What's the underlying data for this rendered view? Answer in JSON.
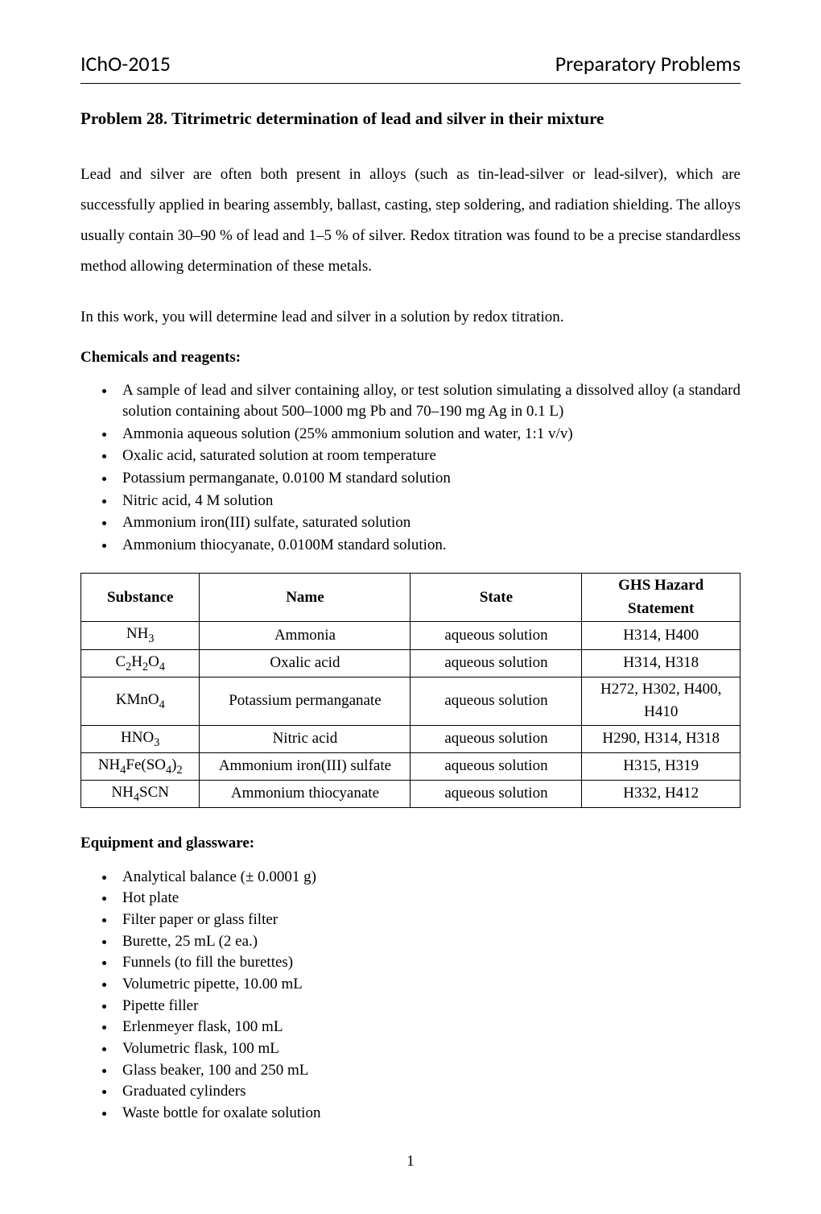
{
  "header": {
    "left": "IChO-2015",
    "right": "Preparatory Problems"
  },
  "title": "Problem 28. Titrimetric determination of lead and silver in their mixture",
  "intro1": "Lead and silver are often both present in alloys (such as tin-lead-silver or lead-silver), which are successfully applied in bearing assembly, ballast, casting, step soldering, and radiation shielding. The alloys usually contain 30–90 % of lead and 1–5 % of silver. Redox titration was found to be a precise standardless method allowing determination of these metals.",
  "intro2": "In this work, you will determine lead and silver in a solution by redox titration.",
  "chemicals_heading": "Chemicals and reagents:",
  "chemicals": [
    "A sample of lead and silver containing alloy, or test solution simulating a dissolved alloy (a standard solution containing about 500–1000 mg Pb and 70–190 mg Ag in 0.1 L)",
    "Ammonia aqueous solution (25% ammonium solution and water, 1:1 v/v)",
    "Oxalic acid, saturated solution at room temperature",
    "Potassium permanganate, 0.0100 M standard solution",
    "Nitric acid, 4 M solution",
    "Ammonium iron(III) sulfate, saturated solution",
    "Ammonium thiocyanate, 0.0100M standard solution."
  ],
  "table": {
    "headers": [
      "Substance",
      "Name",
      "State",
      "GHS Hazard Statement"
    ],
    "rows": [
      {
        "formula_html": "NH<sub>3</sub>",
        "name": "Ammonia",
        "state": "aqueous solution",
        "hazard": "H314, H400"
      },
      {
        "formula_html": "C<sub>2</sub>H<sub>2</sub>O<sub>4</sub>",
        "name": "Oxalic acid",
        "state": "aqueous solution",
        "hazard": "H314, H318"
      },
      {
        "formula_html": "KMnO<sub>4</sub>",
        "name": "Potassium permanganate",
        "state": "aqueous solution",
        "hazard": "H272, H302, H400, H410"
      },
      {
        "formula_html": "HNO<sub>3</sub>",
        "name": "Nitric acid",
        "state": "aqueous solution",
        "hazard": "H290, H314, H318"
      },
      {
        "formula_html": "NH<sub>4</sub>Fe(SO<sub>4</sub>)<sub>2</sub>",
        "name": "Ammonium iron(III) sulfate",
        "state": "aqueous solution",
        "hazard": "H315, H319"
      },
      {
        "formula_html": "NH<sub>4</sub>SCN",
        "name": "Ammonium thiocyanate",
        "state": "aqueous solution",
        "hazard": "H332, H412"
      }
    ]
  },
  "equipment_heading": "Equipment and glassware:",
  "equipment": [
    "Analytical balance (± 0.0001 g)",
    "Hot plate",
    "Filter paper or glass filter",
    "Burette, 25 mL (2 ea.)",
    "Funnels (to fill the burettes)",
    "Volumetric pipette, 10.00 mL",
    "Pipette filler",
    "Erlenmeyer flask, 100 mL",
    "Volumetric flask, 100 mL",
    "Glass beaker, 100 and 250 mL",
    "Graduated cylinders",
    "Waste bottle for oxalate solution"
  ],
  "page_number": "1"
}
